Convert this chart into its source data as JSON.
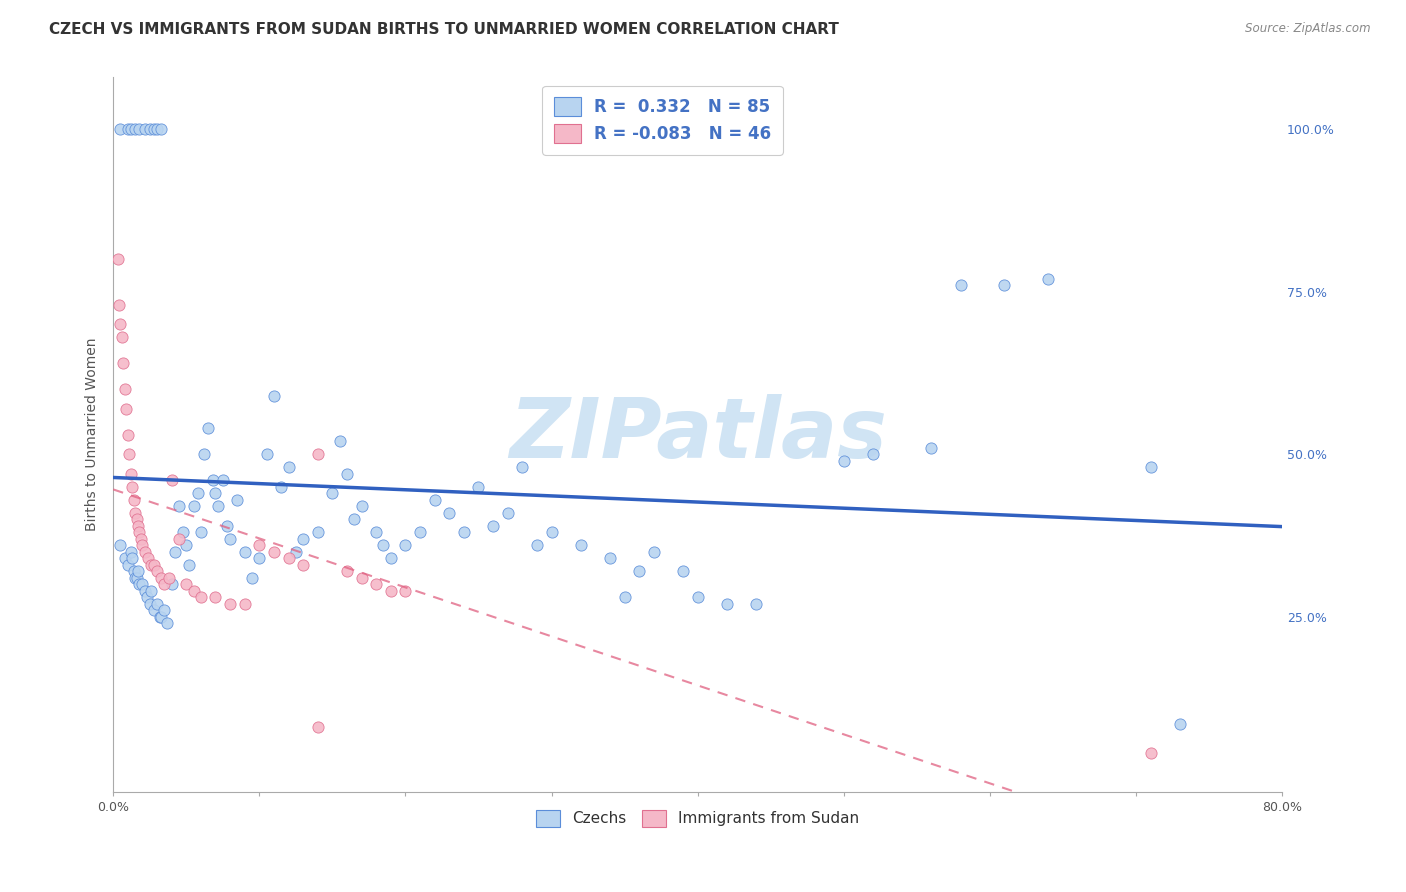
{
  "title": "CZECH VS IMMIGRANTS FROM SUDAN BIRTHS TO UNMARRIED WOMEN CORRELATION CHART",
  "source": "Source: ZipAtlas.com",
  "ylabel": "Births to Unmarried Women",
  "legend_czechs": "Czechs",
  "legend_sudan": "Immigrants from Sudan",
  "r_czechs": 0.332,
  "n_czechs": 85,
  "r_sudan": -0.083,
  "n_sudan": 46,
  "right_yticks": [
    "100.0%",
    "75.0%",
    "50.0%",
    "25.0%"
  ],
  "right_ytick_vals": [
    1.0,
    0.75,
    0.5,
    0.25
  ],
  "xmin": 0.0,
  "xmax": 0.8,
  "ymin": -0.02,
  "ymax": 1.08,
  "blue_scatter_face": "#b8d4f0",
  "blue_scatter_edge": "#5b8dd9",
  "pink_scatter_face": "#f5b8c8",
  "pink_scatter_edge": "#e07090",
  "blue_line_color": "#3060c0",
  "pink_line_color": "#e06080",
  "watermark_color": "#d0e4f4",
  "grid_color": "#cccccc",
  "title_fontsize": 11,
  "axis_label_fontsize": 10,
  "tick_fontsize": 9,
  "czechs_x": [
    0.005,
    0.008,
    0.01,
    0.012,
    0.013,
    0.014,
    0.015,
    0.016,
    0.017,
    0.018,
    0.02,
    0.022,
    0.023,
    0.025,
    0.026,
    0.028,
    0.03,
    0.032,
    0.033,
    0.035,
    0.037,
    0.04,
    0.042,
    0.045,
    0.048,
    0.05,
    0.052,
    0.055,
    0.058,
    0.06,
    0.062,
    0.065,
    0.068,
    0.07,
    0.072,
    0.075,
    0.078,
    0.08,
    0.085,
    0.09,
    0.095,
    0.1,
    0.105,
    0.11,
    0.115,
    0.12,
    0.125,
    0.13,
    0.14,
    0.15,
    0.155,
    0.16,
    0.165,
    0.17,
    0.18,
    0.185,
    0.19,
    0.2,
    0.21,
    0.22,
    0.23,
    0.24,
    0.25,
    0.26,
    0.27,
    0.28,
    0.29,
    0.3,
    0.32,
    0.34,
    0.35,
    0.36,
    0.37,
    0.39,
    0.4,
    0.42,
    0.44,
    0.5,
    0.52,
    0.56,
    0.58,
    0.61,
    0.64,
    0.71,
    0.73
  ],
  "czechs_y": [
    0.36,
    0.34,
    0.33,
    0.35,
    0.34,
    0.32,
    0.31,
    0.31,
    0.32,
    0.3,
    0.3,
    0.29,
    0.28,
    0.27,
    0.29,
    0.26,
    0.27,
    0.25,
    0.25,
    0.26,
    0.24,
    0.3,
    0.35,
    0.42,
    0.38,
    0.36,
    0.33,
    0.42,
    0.44,
    0.38,
    0.5,
    0.54,
    0.46,
    0.44,
    0.42,
    0.46,
    0.39,
    0.37,
    0.43,
    0.35,
    0.31,
    0.34,
    0.5,
    0.59,
    0.45,
    0.48,
    0.35,
    0.37,
    0.38,
    0.44,
    0.52,
    0.47,
    0.4,
    0.42,
    0.38,
    0.36,
    0.34,
    0.36,
    0.38,
    0.43,
    0.41,
    0.38,
    0.45,
    0.39,
    0.41,
    0.48,
    0.36,
    0.38,
    0.36,
    0.34,
    0.28,
    0.32,
    0.35,
    0.32,
    0.28,
    0.27,
    0.27,
    0.49,
    0.5,
    0.51,
    0.76,
    0.76,
    0.77,
    0.48,
    0.085
  ],
  "sudan_x": [
    0.003,
    0.004,
    0.005,
    0.006,
    0.007,
    0.008,
    0.009,
    0.01,
    0.011,
    0.012,
    0.013,
    0.014,
    0.015,
    0.016,
    0.017,
    0.018,
    0.019,
    0.02,
    0.022,
    0.024,
    0.026,
    0.028,
    0.03,
    0.033,
    0.035,
    0.038,
    0.04,
    0.045,
    0.05,
    0.055,
    0.06,
    0.07,
    0.08,
    0.09,
    0.1,
    0.11,
    0.12,
    0.13,
    0.14,
    0.16,
    0.17,
    0.18,
    0.19,
    0.2,
    0.14,
    0.71
  ],
  "sudan_y": [
    0.8,
    0.73,
    0.7,
    0.68,
    0.64,
    0.6,
    0.57,
    0.53,
    0.5,
    0.47,
    0.45,
    0.43,
    0.41,
    0.4,
    0.39,
    0.38,
    0.37,
    0.36,
    0.35,
    0.34,
    0.33,
    0.33,
    0.32,
    0.31,
    0.3,
    0.31,
    0.46,
    0.37,
    0.3,
    0.29,
    0.28,
    0.28,
    0.27,
    0.27,
    0.36,
    0.35,
    0.34,
    0.33,
    0.08,
    0.32,
    0.31,
    0.3,
    0.29,
    0.29,
    0.5,
    0.04
  ],
  "czechs_top_x": [
    0.005,
    0.01,
    0.012,
    0.015,
    0.018,
    0.022,
    0.025,
    0.028,
    0.03,
    0.033
  ],
  "czechs_top_y": [
    1.0,
    1.0,
    1.0,
    1.0,
    1.0,
    1.0,
    1.0,
    1.0,
    1.0,
    1.0
  ]
}
